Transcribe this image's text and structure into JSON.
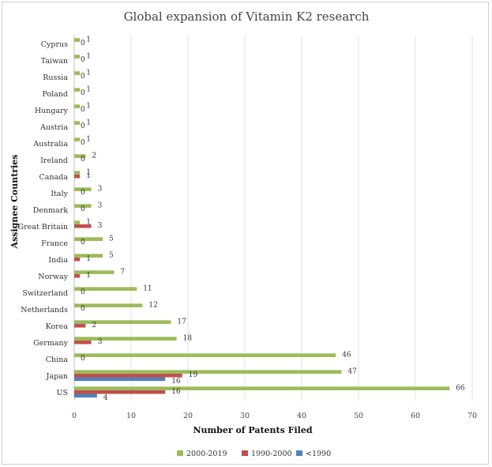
{
  "chart_data": {
    "type": "bar",
    "orientation": "horizontal",
    "title": "Global expansion of Vitamin K2 research",
    "xlabel": "Number of Patents Filed",
    "ylabel": "Assignee Countries",
    "xlim": [
      0,
      70
    ],
    "xticks": [
      0,
      10,
      20,
      30,
      40,
      50,
      60,
      70
    ],
    "grid": "vertical",
    "legend_position": "bottom",
    "categories": [
      "US",
      "Japan",
      "China",
      "Germany",
      "Korea",
      "Netherlands",
      "Switzerland",
      "Norway",
      "India",
      "France",
      "Great Britain",
      "Denmark",
      "Italy",
      "Canada",
      "Ireland",
      "Australia",
      "Austria",
      "Hungary",
      "Poland",
      "Russia",
      "Taiwan",
      "Cyprus"
    ],
    "series": [
      {
        "name": "2000-2019",
        "color": "#9bbb59",
        "values": [
          66,
          47,
          46,
          18,
          17,
          12,
          11,
          7,
          5,
          5,
          1,
          3,
          3,
          1,
          2,
          1,
          1,
          1,
          1,
          1,
          1,
          1
        ]
      },
      {
        "name": "1990-2000",
        "color": "#c0504d",
        "values": [
          16,
          19,
          0,
          3,
          2,
          0,
          0,
          1,
          1,
          0,
          3,
          0,
          0,
          1,
          0,
          0,
          0,
          0,
          0,
          0,
          0,
          0
        ]
      },
      {
        "name": "<1990",
        "color": "#4f81bd",
        "values": [
          4,
          16,
          0,
          0,
          0,
          0,
          0,
          0,
          0,
          0,
          0,
          0,
          0,
          0,
          0,
          0,
          0,
          0,
          0,
          0,
          0,
          0
        ]
      }
    ]
  }
}
